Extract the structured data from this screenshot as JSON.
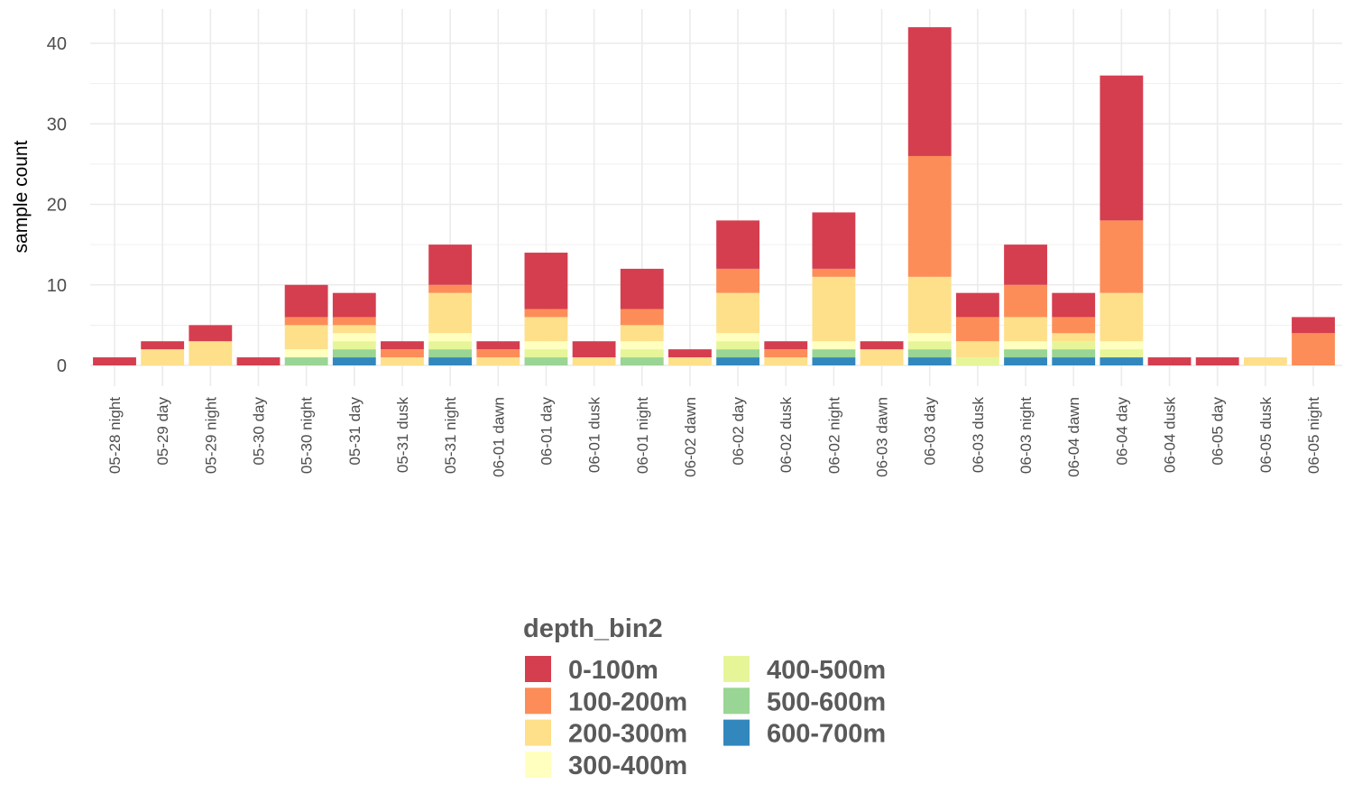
{
  "chart_data": {
    "type": "bar",
    "stacked": true,
    "title": "",
    "xlabel": "",
    "ylabel": "sample count",
    "ylim": [
      0,
      44
    ],
    "yticks": [
      0,
      10,
      20,
      30,
      40
    ],
    "grid": true,
    "legend_position": "bottom",
    "legend_title": "depth_bin2",
    "categories": [
      "05-28 night",
      "05-29 day",
      "05-29 night",
      "05-30 day",
      "05-30 night",
      "05-31 day",
      "05-31 dusk",
      "05-31 night",
      "06-01 dawn",
      "06-01 day",
      "06-01 dusk",
      "06-01 night",
      "06-02 dawn",
      "06-02 day",
      "06-02 dusk",
      "06-02 night",
      "06-03 dawn",
      "06-03 day",
      "06-03 dusk",
      "06-03 night",
      "06-04 dawn",
      "06-04 day",
      "06-04 dusk",
      "06-05 day",
      "06-05 dusk",
      "06-05 night"
    ],
    "series": [
      {
        "name": "0-100m",
        "color": "#d53e4f",
        "values": [
          1,
          1,
          2,
          1,
          4,
          3,
          1,
          5,
          1,
          7,
          2,
          5,
          1,
          6,
          1,
          7,
          1,
          16,
          3,
          5,
          3,
          18,
          1,
          1,
          0,
          2
        ]
      },
      {
        "name": "100-200m",
        "color": "#fc8d59",
        "values": [
          0,
          0,
          0,
          0,
          1,
          1,
          1,
          1,
          1,
          1,
          0,
          2,
          0,
          3,
          1,
          1,
          0,
          15,
          3,
          4,
          2,
          9,
          0,
          0,
          0,
          4
        ]
      },
      {
        "name": "200-300m",
        "color": "#fee08b",
        "values": [
          0,
          2,
          3,
          0,
          3,
          1,
          1,
          5,
          1,
          3,
          1,
          2,
          1,
          5,
          1,
          8,
          2,
          7,
          2,
          3,
          1,
          6,
          0,
          0,
          1,
          0
        ]
      },
      {
        "name": "300-400m",
        "color": "#ffffbf",
        "values": [
          0,
          0,
          0,
          0,
          1,
          1,
          0,
          1,
          0,
          1,
          0,
          1,
          0,
          1,
          0,
          1,
          0,
          1,
          0,
          1,
          0,
          1,
          0,
          0,
          0,
          0
        ]
      },
      {
        "name": "400-500m",
        "color": "#e6f598",
        "values": [
          0,
          0,
          0,
          0,
          0,
          1,
          0,
          1,
          0,
          1,
          0,
          1,
          0,
          1,
          0,
          0,
          0,
          1,
          1,
          0,
          1,
          1,
          0,
          0,
          0,
          0
        ]
      },
      {
        "name": "500-600m",
        "color": "#99d594",
        "values": [
          0,
          0,
          0,
          0,
          1,
          1,
          0,
          1,
          0,
          1,
          0,
          1,
          0,
          1,
          0,
          1,
          0,
          1,
          0,
          1,
          1,
          0,
          0,
          0,
          0,
          0
        ]
      },
      {
        "name": "600-700m",
        "color": "#3288bd",
        "values": [
          0,
          0,
          0,
          0,
          0,
          1,
          0,
          1,
          0,
          0,
          0,
          0,
          0,
          1,
          0,
          1,
          0,
          1,
          0,
          1,
          1,
          1,
          0,
          0,
          0,
          0
        ]
      }
    ]
  }
}
